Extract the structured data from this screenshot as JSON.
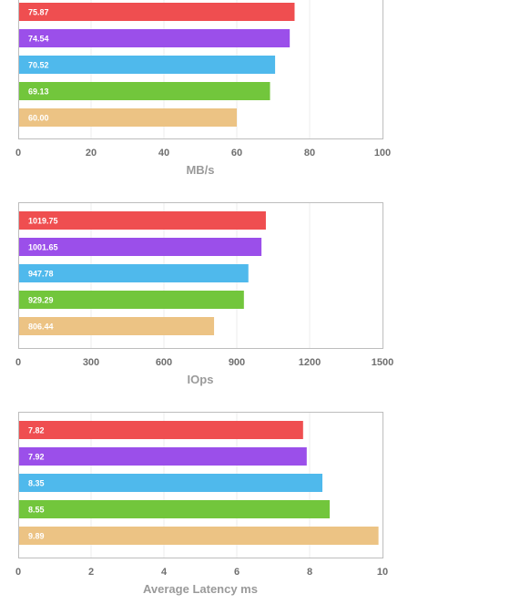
{
  "palette": [
    "#ef4e50",
    "#9b4fea",
    "#4fb9ec",
    "#72c63c",
    "#ecc384"
  ],
  "chart_data": [
    {
      "type": "bar",
      "orientation": "horizontal",
      "title": "",
      "xlabel": "MB/s",
      "values": [
        75.87,
        74.54,
        70.52,
        69.13,
        60.0
      ],
      "value_labels": [
        "75.87",
        "74.54",
        "70.52",
        "69.13",
        "60.00"
      ],
      "xlim": [
        0,
        100
      ],
      "ticks": [
        0,
        20,
        40,
        60,
        80,
        100
      ],
      "tick_labels": [
        "0",
        "20",
        "40",
        "60",
        "80",
        "100"
      ],
      "grid": true
    },
    {
      "type": "bar",
      "orientation": "horizontal",
      "title": "",
      "xlabel": "IOps",
      "values": [
        1019.75,
        1001.65,
        947.78,
        929.29,
        806.44
      ],
      "value_labels": [
        "1019.75",
        "1001.65",
        "947.78",
        "929.29",
        "806.44"
      ],
      "xlim": [
        0,
        1500
      ],
      "ticks": [
        0,
        300,
        600,
        900,
        1200,
        1500
      ],
      "tick_labels": [
        "0",
        "300",
        "600",
        "900",
        "1200",
        "1500"
      ],
      "grid": true
    },
    {
      "type": "bar",
      "orientation": "horizontal",
      "title": "",
      "xlabel": "Average Latency ms",
      "values": [
        7.82,
        7.92,
        8.35,
        8.55,
        9.89
      ],
      "value_labels": [
        "7.82",
        "7.92",
        "8.35",
        "8.55",
        "9.89"
      ],
      "xlim": [
        0,
        10
      ],
      "ticks": [
        0,
        2,
        4,
        6,
        8,
        10
      ],
      "tick_labels": [
        "0",
        "2",
        "4",
        "6",
        "8",
        "10"
      ],
      "grid": true
    }
  ]
}
